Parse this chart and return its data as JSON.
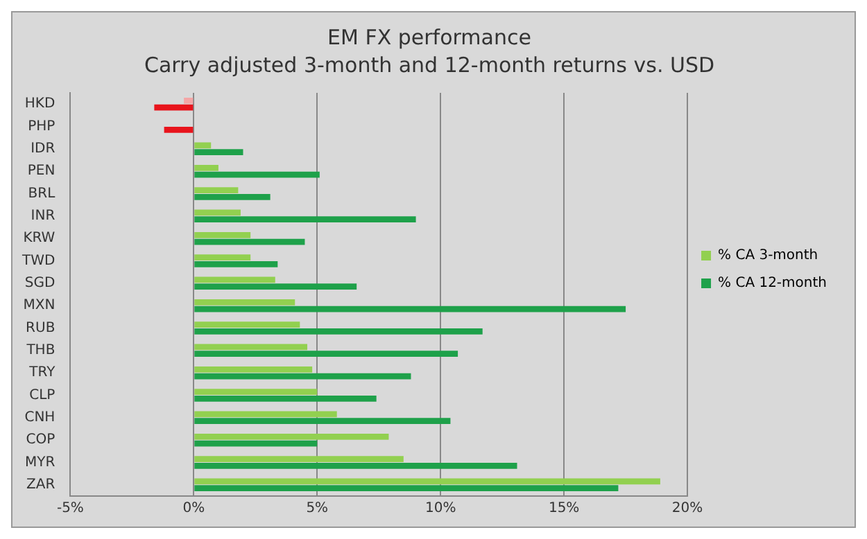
{
  "chart_data": {
    "type": "bar",
    "orientation": "horizontal",
    "title": "EM FX performance",
    "subtitle": "Carry adjusted 3-month and 12-month returns vs. USD",
    "categories": [
      "HKD",
      "PHP",
      "IDR",
      "PEN",
      "BRL",
      "INR",
      "KRW",
      "TWD",
      "SGD",
      "MXN",
      "RUB",
      "THB",
      "TRY",
      "CLP",
      "CNH",
      "COP",
      "MYR",
      "ZAR"
    ],
    "series": [
      {
        "name": "% CA 3-month",
        "color": "#92d050",
        "colors": [
          "#f4a6a6",
          "#f4a6a6",
          "#92d050",
          "#92d050",
          "#92d050",
          "#92d050",
          "#92d050",
          "#92d050",
          "#92d050",
          "#92d050",
          "#92d050",
          "#92d050",
          "#92d050",
          "#92d050",
          "#92d050",
          "#92d050",
          "#92d050",
          "#92d050"
        ],
        "values": [
          -0.4,
          0,
          0.7,
          1.0,
          1.8,
          1.9,
          2.3,
          2.3,
          3.3,
          4.1,
          4.3,
          4.6,
          4.8,
          5.0,
          5.8,
          7.9,
          8.5,
          18.9
        ]
      },
      {
        "name": "% CA 12-month",
        "color": "#1ea14a",
        "colors": [
          "#e8141c",
          "#e8141c",
          "#1ea14a",
          "#1ea14a",
          "#1ea14a",
          "#1ea14a",
          "#1ea14a",
          "#1ea14a",
          "#1ea14a",
          "#1ea14a",
          "#1ea14a",
          "#1ea14a",
          "#1ea14a",
          "#1ea14a",
          "#1ea14a",
          "#1ea14a",
          "#1ea14a",
          "#1ea14a"
        ],
        "values": [
          -1.6,
          -1.2,
          2.0,
          5.1,
          3.1,
          9.0,
          4.5,
          3.4,
          6.6,
          17.5,
          11.7,
          10.7,
          8.8,
          7.4,
          10.4,
          5.0,
          13.1,
          17.2
        ]
      }
    ],
    "xlim": [
      -5,
      20
    ],
    "xticks": [
      {
        "value": -5,
        "label": "-5%"
      },
      {
        "value": 0,
        "label": "0%"
      },
      {
        "value": 5,
        "label": "5%"
      },
      {
        "value": 10,
        "label": "10%"
      },
      {
        "value": 15,
        "label": "15%"
      },
      {
        "value": 20,
        "label": "20%"
      }
    ],
    "grid": "x",
    "legend": "right"
  }
}
